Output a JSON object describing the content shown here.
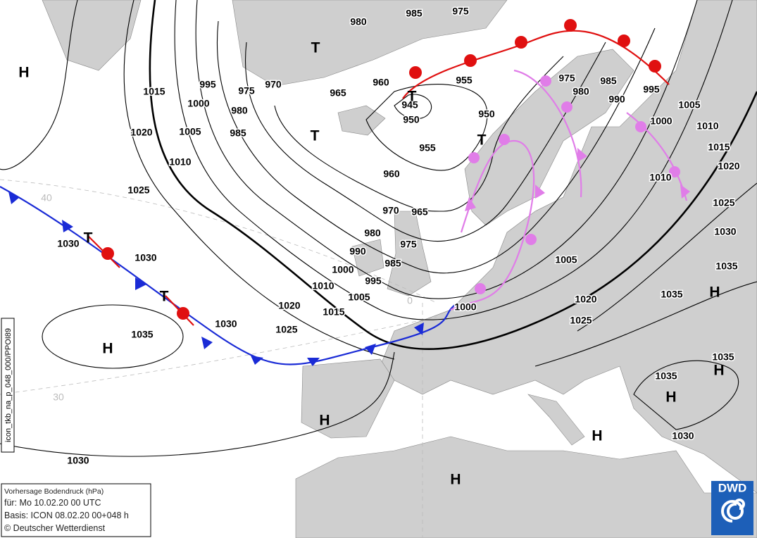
{
  "map": {
    "isobar_labels": [
      "980",
      "985",
      "975",
      "1015",
      "995",
      "975",
      "970",
      "965",
      "960",
      "955",
      "975",
      "980",
      "985",
      "990",
      "995",
      "945",
      "950",
      "1000",
      "980",
      "1005",
      "985",
      "1020",
      "950",
      "1005",
      "1000",
      "1010",
      "955",
      "1015",
      "1010",
      "1020",
      "960",
      "1010",
      "1025",
      "1025",
      "970",
      "965",
      "980",
      "1030",
      "1030",
      "975",
      "990",
      "1030",
      "985",
      "1005",
      "1000",
      "1035",
      "995",
      "1010",
      "1035",
      "1005",
      "1020",
      "1000",
      "1020",
      "1015",
      "1025",
      "1030",
      "1025",
      "1035",
      "1035",
      "1035",
      "1030",
      "1030"
    ],
    "pressure_centers": [
      "H",
      "T",
      "T",
      "T",
      "T",
      "T",
      "T",
      "H",
      "H",
      "H",
      "H",
      "H",
      "H",
      "H"
    ],
    "graticule_labels": [
      "40",
      "30",
      "0"
    ]
  },
  "legend": {
    "lines": [
      "Vorhersage Bodendruck (hPa)",
      "für:  Mo 10.02.20  00 UTC",
      "Basis: ICON  08.02.20 00+048 h",
      "© Deutscher Wetterdienst"
    ]
  },
  "side_label": "icon_tkb_na_p_048_000/PPOI89",
  "logo": "DWD"
}
